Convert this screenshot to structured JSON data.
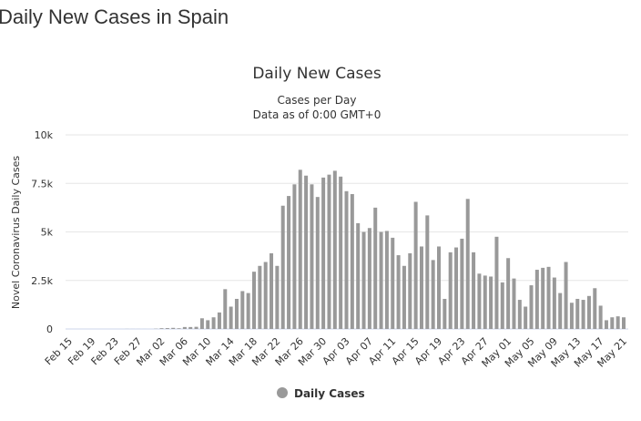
{
  "page_title": "Daily New Cases in Spain",
  "chart_data": {
    "type": "bar",
    "title": "Daily New Cases",
    "subtitle": [
      "Cases per Day",
      "Data as of 0:00 GMT+0"
    ],
    "y_label": "Novel Coronavirus Daily Cases",
    "color": "#999999",
    "grid": true,
    "legend": {
      "name": "Daily Cases",
      "position": "bottom"
    },
    "ylim": [
      0,
      10000
    ],
    "yticks": [
      0,
      {
        "value": 2500,
        "label": "2.5k"
      },
      {
        "value": 5000,
        "label": "5k"
      },
      {
        "value": 7500,
        "label": "7.5k"
      },
      {
        "value": 10000,
        "label": "10k"
      }
    ],
    "categories": [
      "Feb 15",
      null,
      null,
      null,
      "Feb 19",
      null,
      null,
      null,
      "Feb 23",
      null,
      null,
      null,
      "Feb 27",
      null,
      null,
      null,
      "Mar 02",
      null,
      null,
      null,
      "Mar 06",
      null,
      null,
      null,
      "Mar 10",
      null,
      null,
      null,
      "Mar 14",
      null,
      null,
      null,
      "Mar 18",
      null,
      null,
      null,
      "Mar 22",
      null,
      null,
      null,
      "Mar 26",
      null,
      null,
      null,
      "Mar 30",
      null,
      null,
      null,
      "Apr 03",
      null,
      null,
      null,
      "Apr 07",
      null,
      null,
      null,
      "Apr 11",
      null,
      null,
      null,
      "Apr 15",
      null,
      null,
      null,
      "Apr 19",
      null,
      null,
      null,
      "Apr 23",
      null,
      null,
      null,
      "Apr 27",
      null,
      null,
      null,
      "May 01",
      null,
      null,
      null,
      "May 05",
      null,
      null,
      null,
      "May 09",
      null,
      null,
      null,
      "May 13",
      null,
      null,
      null,
      "May 17",
      null,
      null,
      null,
      "May 21"
    ],
    "values": [
      0,
      0,
      0,
      0,
      0,
      0,
      0,
      0,
      0,
      0,
      4,
      2,
      2,
      1,
      0,
      13,
      39,
      45,
      57,
      37,
      100,
      100,
      110,
      550,
      450,
      600,
      850,
      2050,
      1150,
      1550,
      1950,
      1850,
      2950,
      3250,
      3450,
      3900,
      3250,
      6350,
      6850,
      7450,
      8200,
      7900,
      7450,
      6800,
      7800,
      7950,
      8150,
      7850,
      7100,
      6950,
      5450,
      5000,
      5200,
      6250,
      5000,
      5050,
      4700,
      3800,
      3250,
      3900,
      6550,
      4250,
      5850,
      3550,
      4250,
      1550,
      3950,
      4200,
      4650,
      6700,
      3950,
      2850,
      2750,
      2700,
      4750,
      2400,
      3650,
      2600,
      1500,
      1150,
      2250,
      3050,
      3150,
      3200,
      2650,
      1850,
      3450,
      1350,
      1550,
      1500,
      1700,
      2100,
      1200,
      450,
      600,
      650,
      600
    ]
  }
}
